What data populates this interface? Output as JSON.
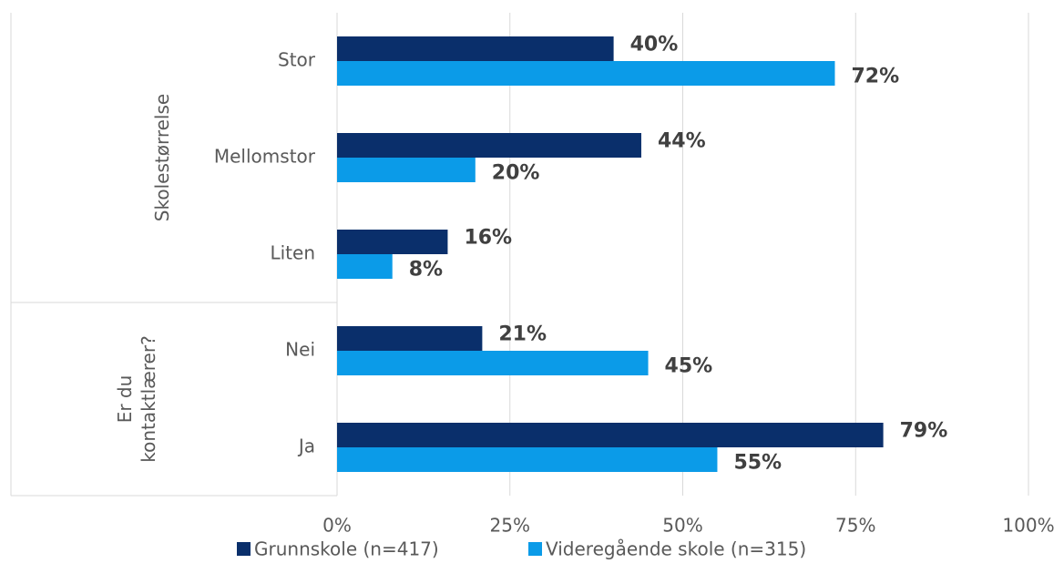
{
  "chart_data": {
    "type": "hbar",
    "categories": [
      "Stor",
      "Mellomstor",
      "Liten",
      "Nei",
      "Ja"
    ],
    "groups": [
      {
        "label": "Skolestørrelse",
        "size": 3
      },
      {
        "label": "Er du kontaktlærer?",
        "size": 2
      }
    ],
    "series": [
      {
        "name": "Grunnskole (n=417)",
        "color": "#0a2f6b",
        "values": [
          40,
          44,
          16,
          21,
          79
        ],
        "value_labels": [
          "40%",
          "44%",
          "16%",
          "21%",
          "79%"
        ]
      },
      {
        "name": "Videregående skole (n=315)",
        "color": "#0b9be8",
        "values": [
          72,
          20,
          8,
          45,
          55
        ],
        "value_labels": [
          "72%",
          "20%",
          "8%",
          "45%",
          "55%"
        ]
      }
    ],
    "xlim": [
      0,
      100
    ],
    "xticks": [
      {
        "value": 0,
        "label": "0%"
      },
      {
        "value": 25,
        "label": "25%"
      },
      {
        "value": 50,
        "label": "50%"
      },
      {
        "value": 75,
        "label": "75%"
      },
      {
        "value": 100,
        "label": "100%"
      }
    ],
    "grid": true,
    "legend": "bottom"
  }
}
